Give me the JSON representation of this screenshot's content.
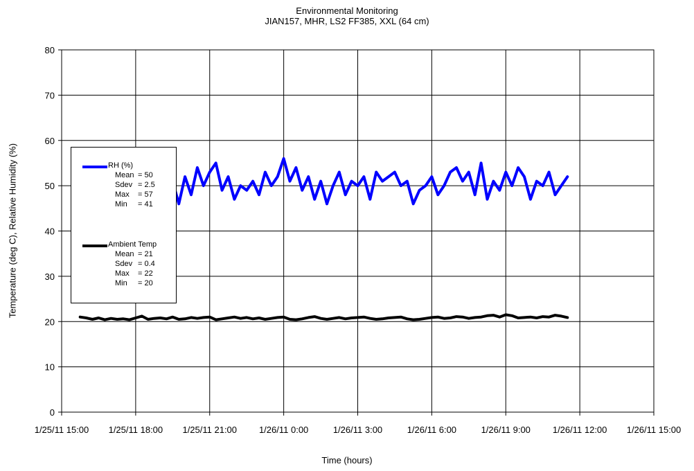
{
  "chart_data": {
    "type": "line",
    "title": "Environmental Monitoring",
    "subtitle": "JIAN157, MHR, LS2 FF385, XXL (64 cm)",
    "xlabel": "Time (hours)",
    "ylabel": "Temperature (deg C), Relative Humidity (%)",
    "xlim": [
      "1/25/11 15:00",
      "1/26/11 15:00"
    ],
    "ylim": [
      0,
      80
    ],
    "yticks": [
      "0",
      "10",
      "20",
      "30",
      "40",
      "50",
      "60",
      "70",
      "80"
    ],
    "xticks": [
      "1/25/11 15:00",
      "1/25/11 18:00",
      "1/25/11 21:00",
      "1/26/11 0:00",
      "1/26/11 3:00",
      "1/26/11 6:00",
      "1/26/11 9:00",
      "1/26/11 12:00",
      "1/26/11 15:00"
    ],
    "grid": true,
    "legend_position": "left",
    "series": [
      {
        "name": "RH (%)",
        "color": "#0000ff",
        "stats": [
          {
            "label": "Mean",
            "value": "= 50"
          },
          {
            "label": "Sdev",
            "value": "= 2.5"
          },
          {
            "label": "Max",
            "value": "= 57"
          },
          {
            "label": "Min",
            "value": "= 41"
          }
        ],
        "x": [
          "1/25/11 18:45",
          "1/25/11 19:00",
          "1/25/11 19:15",
          "1/25/11 19:30",
          "1/25/11 19:45",
          "1/25/11 20:00",
          "1/25/11 20:15",
          "1/25/11 20:30",
          "1/25/11 20:45",
          "1/25/11 21:00",
          "1/25/11 21:15",
          "1/25/11 21:30",
          "1/25/11 21:45",
          "1/25/11 22:00",
          "1/25/11 22:15",
          "1/25/11 22:30",
          "1/25/11 22:45",
          "1/25/11 23:00",
          "1/25/11 23:15",
          "1/25/11 23:30",
          "1/25/11 23:45",
          "1/26/11 0:00",
          "1/26/11 0:15",
          "1/26/11 0:30",
          "1/26/11 0:45",
          "1/26/11 1:00",
          "1/26/11 1:15",
          "1/26/11 1:30",
          "1/26/11 1:45",
          "1/26/11 2:00",
          "1/26/11 2:15",
          "1/26/11 2:30",
          "1/26/11 2:45",
          "1/26/11 3:00",
          "1/26/11 3:15",
          "1/26/11 3:30",
          "1/26/11 3:45",
          "1/26/11 4:00",
          "1/26/11 4:15",
          "1/26/11 4:30",
          "1/26/11 4:45",
          "1/26/11 5:00",
          "1/26/11 5:15",
          "1/26/11 5:30",
          "1/26/11 5:45",
          "1/26/11 6:00",
          "1/26/11 6:15",
          "1/26/11 6:30",
          "1/26/11 6:45",
          "1/26/11 7:00",
          "1/26/11 7:15",
          "1/26/11 7:30",
          "1/26/11 7:45",
          "1/26/11 8:00",
          "1/26/11 8:15",
          "1/26/11 8:30",
          "1/26/11 8:45",
          "1/26/11 9:00",
          "1/26/11 9:15",
          "1/26/11 9:30",
          "1/26/11 9:45",
          "1/26/11 10:00",
          "1/26/11 10:15",
          "1/26/11 10:30",
          "1/26/11 10:45",
          "1/26/11 11:00",
          "1/26/11 11:15",
          "1/26/11 11:30"
        ],
        "values": [
          48,
          53,
          47,
          51,
          46,
          52,
          48,
          54,
          50,
          53,
          55,
          49,
          52,
          47,
          50,
          49,
          51,
          48,
          53,
          50,
          52,
          56,
          51,
          54,
          49,
          52,
          47,
          51,
          46,
          50,
          53,
          48,
          51,
          50,
          52,
          47,
          53,
          51,
          52,
          53,
          50,
          51,
          46,
          49,
          50,
          52,
          48,
          50,
          53,
          54,
          51,
          53,
          48,
          55,
          47,
          51,
          49,
          53,
          50,
          54,
          52,
          47,
          51,
          50,
          53,
          48,
          50,
          52
        ]
      },
      {
        "name": "Ambient Temp",
        "color": "#000000",
        "stats": [
          {
            "label": "Mean",
            "value": "= 21"
          },
          {
            "label": "Sdev",
            "value": "= 0.4"
          },
          {
            "label": "Max",
            "value": "= 22"
          },
          {
            "label": "Min",
            "value": "= 20"
          }
        ],
        "x": [
          "1/25/11 15:45",
          "1/25/11 16:00",
          "1/25/11 16:15",
          "1/25/11 16:30",
          "1/25/11 16:45",
          "1/25/11 17:00",
          "1/25/11 17:15",
          "1/25/11 17:30",
          "1/25/11 17:45",
          "1/25/11 18:00",
          "1/25/11 18:15",
          "1/25/11 18:30",
          "1/25/11 18:45",
          "1/25/11 19:00",
          "1/25/11 19:15",
          "1/25/11 19:30",
          "1/25/11 19:45",
          "1/25/11 20:00",
          "1/25/11 20:15",
          "1/25/11 20:30",
          "1/25/11 20:45",
          "1/25/11 21:00",
          "1/25/11 21:15",
          "1/25/11 21:30",
          "1/25/11 21:45",
          "1/25/11 22:00",
          "1/25/11 22:15",
          "1/25/11 22:30",
          "1/25/11 22:45",
          "1/25/11 23:00",
          "1/25/11 23:15",
          "1/25/11 23:30",
          "1/25/11 23:45",
          "1/26/11 0:00",
          "1/26/11 0:15",
          "1/26/11 0:30",
          "1/26/11 0:45",
          "1/26/11 1:00",
          "1/26/11 1:15",
          "1/26/11 1:30",
          "1/26/11 1:45",
          "1/26/11 2:00",
          "1/26/11 2:15",
          "1/26/11 2:30",
          "1/26/11 2:45",
          "1/26/11 3:00",
          "1/26/11 3:15",
          "1/26/11 3:30",
          "1/26/11 3:45",
          "1/26/11 4:00",
          "1/26/11 4:15",
          "1/26/11 4:30",
          "1/26/11 4:45",
          "1/26/11 5:00",
          "1/26/11 5:15",
          "1/26/11 5:30",
          "1/26/11 5:45",
          "1/26/11 6:00",
          "1/26/11 6:15",
          "1/26/11 6:30",
          "1/26/11 6:45",
          "1/26/11 7:00",
          "1/26/11 7:15",
          "1/26/11 7:30",
          "1/26/11 7:45",
          "1/26/11 8:00",
          "1/26/11 8:15",
          "1/26/11 8:30",
          "1/26/11 8:45",
          "1/26/11 9:00",
          "1/26/11 9:15",
          "1/26/11 9:30",
          "1/26/11 9:45",
          "1/26/11 10:00",
          "1/26/11 10:15",
          "1/26/11 10:30",
          "1/26/11 10:45",
          "1/26/11 11:00",
          "1/26/11 11:15",
          "1/26/11 11:30"
        ],
        "values": [
          21,
          20.8,
          20.5,
          20.8,
          20.4,
          20.7,
          20.5,
          20.6,
          20.4,
          20.8,
          21.2,
          20.5,
          20.7,
          20.8,
          20.6,
          21,
          20.5,
          20.6,
          20.9,
          20.7,
          20.9,
          21,
          20.4,
          20.6,
          20.8,
          21,
          20.7,
          20.9,
          20.6,
          20.8,
          20.5,
          20.7,
          20.9,
          21,
          20.5,
          20.4,
          20.6,
          20.9,
          21.1,
          20.7,
          20.5,
          20.7,
          20.9,
          20.6,
          20.8,
          20.9,
          21,
          20.7,
          20.5,
          20.6,
          20.8,
          20.9,
          21,
          20.6,
          20.4,
          20.5,
          20.7,
          20.9,
          21,
          20.7,
          20.8,
          21.1,
          21,
          20.7,
          20.9,
          21,
          21.3,
          21.4,
          21,
          21.5,
          21.3,
          20.8,
          20.9,
          21,
          20.8,
          21.1,
          21,
          21.4,
          21.2,
          20.9
        ]
      }
    ]
  }
}
